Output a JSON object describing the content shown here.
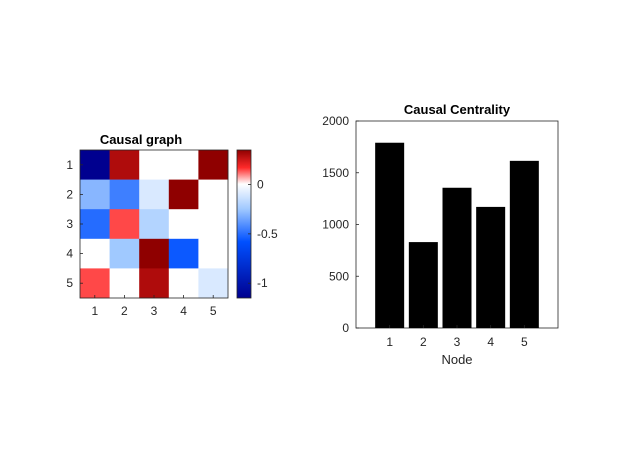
{
  "chart_data": [
    {
      "type": "heatmap",
      "title": "Causal graph",
      "x_ticks": [
        "1",
        "2",
        "3",
        "4",
        "5"
      ],
      "y_ticks": [
        "1",
        "2",
        "3",
        "4",
        "5"
      ],
      "matrix": [
        [
          -1.15,
          0.3,
          0.0,
          0.0,
          0.35
        ],
        [
          -0.3,
          -0.45,
          -0.1,
          0.55,
          0.0
        ],
        [
          -0.5,
          0.15,
          -0.2,
          0.0,
          0.0
        ],
        [
          0.0,
          -0.25,
          0.55,
          -0.55,
          0.0
        ],
        [
          0.15,
          0.0,
          0.3,
          0.0,
          -0.1
        ]
      ],
      "colorbar": {
        "range": [
          -1.15,
          0.35
        ],
        "ticks": [
          0,
          -0.5,
          -1
        ],
        "tick_labels": [
          "0",
          "-0.5",
          "-1"
        ]
      },
      "colormap": "blue-white-red"
    },
    {
      "type": "bar",
      "title": "Causal Centrality",
      "xlabel": "Node",
      "ylabel": "",
      "categories": [
        "1",
        "2",
        "3",
        "4",
        "5"
      ],
      "values": [
        1790,
        830,
        1355,
        1170,
        1615
      ],
      "ylim": [
        0,
        2000
      ],
      "y_ticks": [
        "0",
        "500",
        "1000",
        "1500",
        "2000"
      ],
      "bar_color": "#000000"
    }
  ]
}
